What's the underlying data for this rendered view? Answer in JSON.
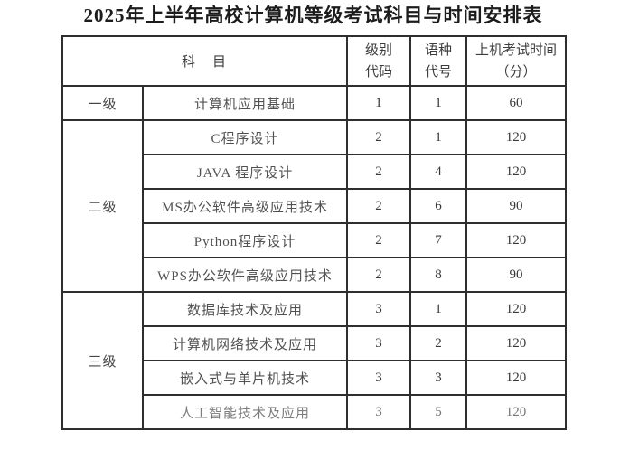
{
  "title": "2025年上半年高校计算机等级考试科目与时间安排表",
  "table": {
    "header": {
      "subject": "科　目",
      "level_code": [
        "级别",
        "代码"
      ],
      "lang_code": [
        "语种",
        "代号"
      ],
      "exam_time": [
        "上机考试时间",
        "（分）"
      ]
    },
    "groups": [
      {
        "level": "一级",
        "rows": [
          {
            "subject": "计算机应用基础",
            "level_code": "1",
            "lang_code": "1",
            "time": "60"
          }
        ]
      },
      {
        "level": "二级",
        "rows": [
          {
            "subject": "C程序设计",
            "level_code": "2",
            "lang_code": "1",
            "time": "120"
          },
          {
            "subject": "JAVA 程序设计",
            "level_code": "2",
            "lang_code": "4",
            "time": "120"
          },
          {
            "subject": "MS办公软件高级应用技术",
            "level_code": "2",
            "lang_code": "6",
            "time": "90"
          },
          {
            "subject": "Python程序设计",
            "level_code": "2",
            "lang_code": "7",
            "time": "120"
          },
          {
            "subject": "WPS办公软件高级应用技术",
            "level_code": "2",
            "lang_code": "8",
            "time": "90"
          }
        ]
      },
      {
        "level": "三级",
        "rows": [
          {
            "subject": "数据库技术及应用",
            "level_code": "3",
            "lang_code": "1",
            "time": "120"
          },
          {
            "subject": "计算机网络技术及应用",
            "level_code": "3",
            "lang_code": "2",
            "time": "120"
          },
          {
            "subject": "嵌入式与单片机技术",
            "level_code": "3",
            "lang_code": "3",
            "time": "120"
          },
          {
            "subject": "人工智能技术及应用",
            "level_code": "3",
            "lang_code": "5",
            "time": "120"
          }
        ]
      }
    ]
  },
  "colors": {
    "background": "#ffffff",
    "border": "#2e2e2e",
    "title_text": "#1c1c1c",
    "body_text": "#3d3d3d"
  }
}
